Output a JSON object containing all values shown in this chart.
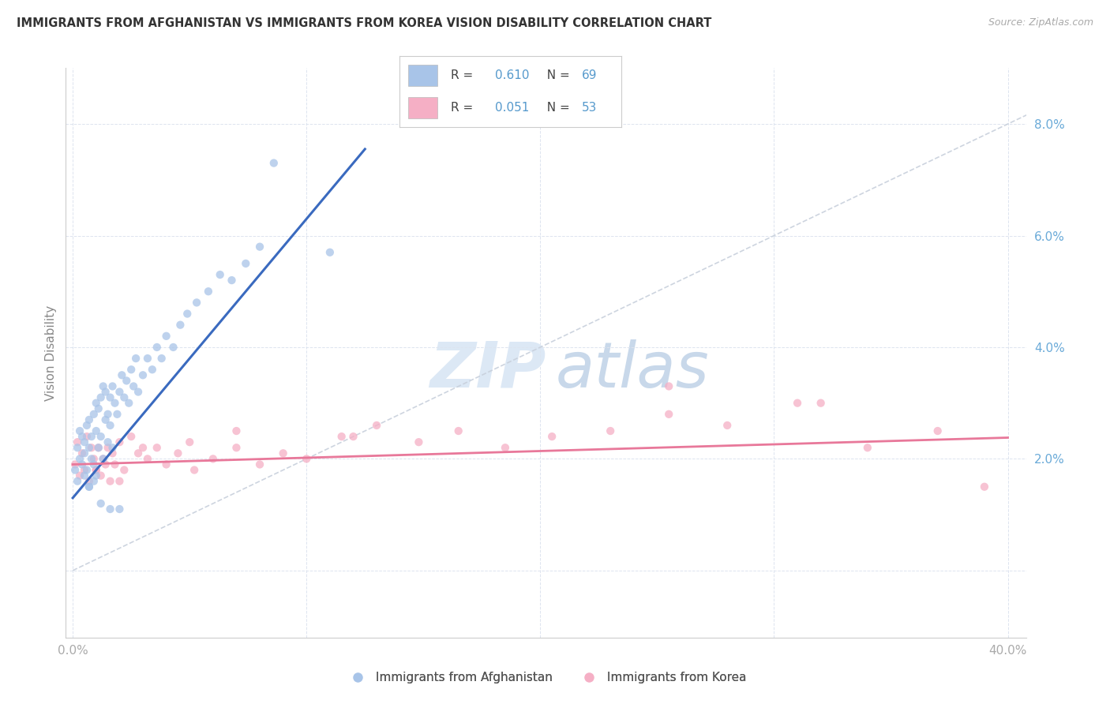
{
  "title": "IMMIGRANTS FROM AFGHANISTAN VS IMMIGRANTS FROM KOREA VISION DISABILITY CORRELATION CHART",
  "source": "Source: ZipAtlas.com",
  "ylabel": "Vision Disability",
  "xlim": [
    0.0,
    0.4
  ],
  "ylim": [
    -0.01,
    0.088
  ],
  "afghanistan_R": 0.61,
  "afghanistan_N": 69,
  "korea_R": 0.051,
  "korea_N": 53,
  "afghanistan_color": "#a8c4e8",
  "korea_color": "#f5afc5",
  "afghanistan_line_color": "#3a6abf",
  "korea_line_color": "#e8789a",
  "diagonal_line_color": "#c8d0dc",
  "background_color": "#ffffff",
  "grid_color": "#dde4ef",
  "tick_color": "#aaaaaa",
  "right_tick_color": "#6aaad8",
  "title_color": "#333333",
  "source_color": "#aaaaaa",
  "ylabel_color": "#888888",
  "legend_text_color": "#444444",
  "legend_value_color": "#5599cc",
  "watermark_zip_color": "#dce8f5",
  "watermark_atlas_color": "#c8d8ea"
}
